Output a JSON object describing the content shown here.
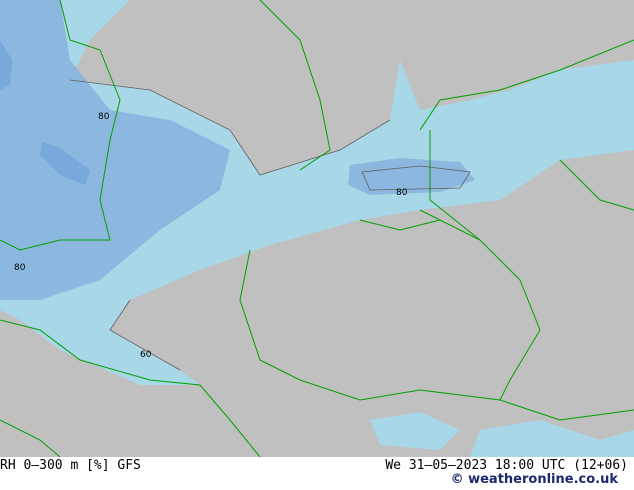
{
  "map": {
    "contour_labels": [
      "80",
      "80",
      "80",
      "60"
    ],
    "colors": {
      "land_dry": "#c0c0c0",
      "rh_60": "#a8d8e8",
      "rh_80": "#8cb8e0",
      "rh_90": "#78a8dc",
      "borders": "#00a000",
      "contours": "#606060"
    }
  },
  "footer": {
    "product": "RH 0–300 m [%] GFS",
    "datetime": "We 31–05–2023 18:00 UTC (12+06)",
    "copyright": "© weatheronline.co.uk"
  }
}
